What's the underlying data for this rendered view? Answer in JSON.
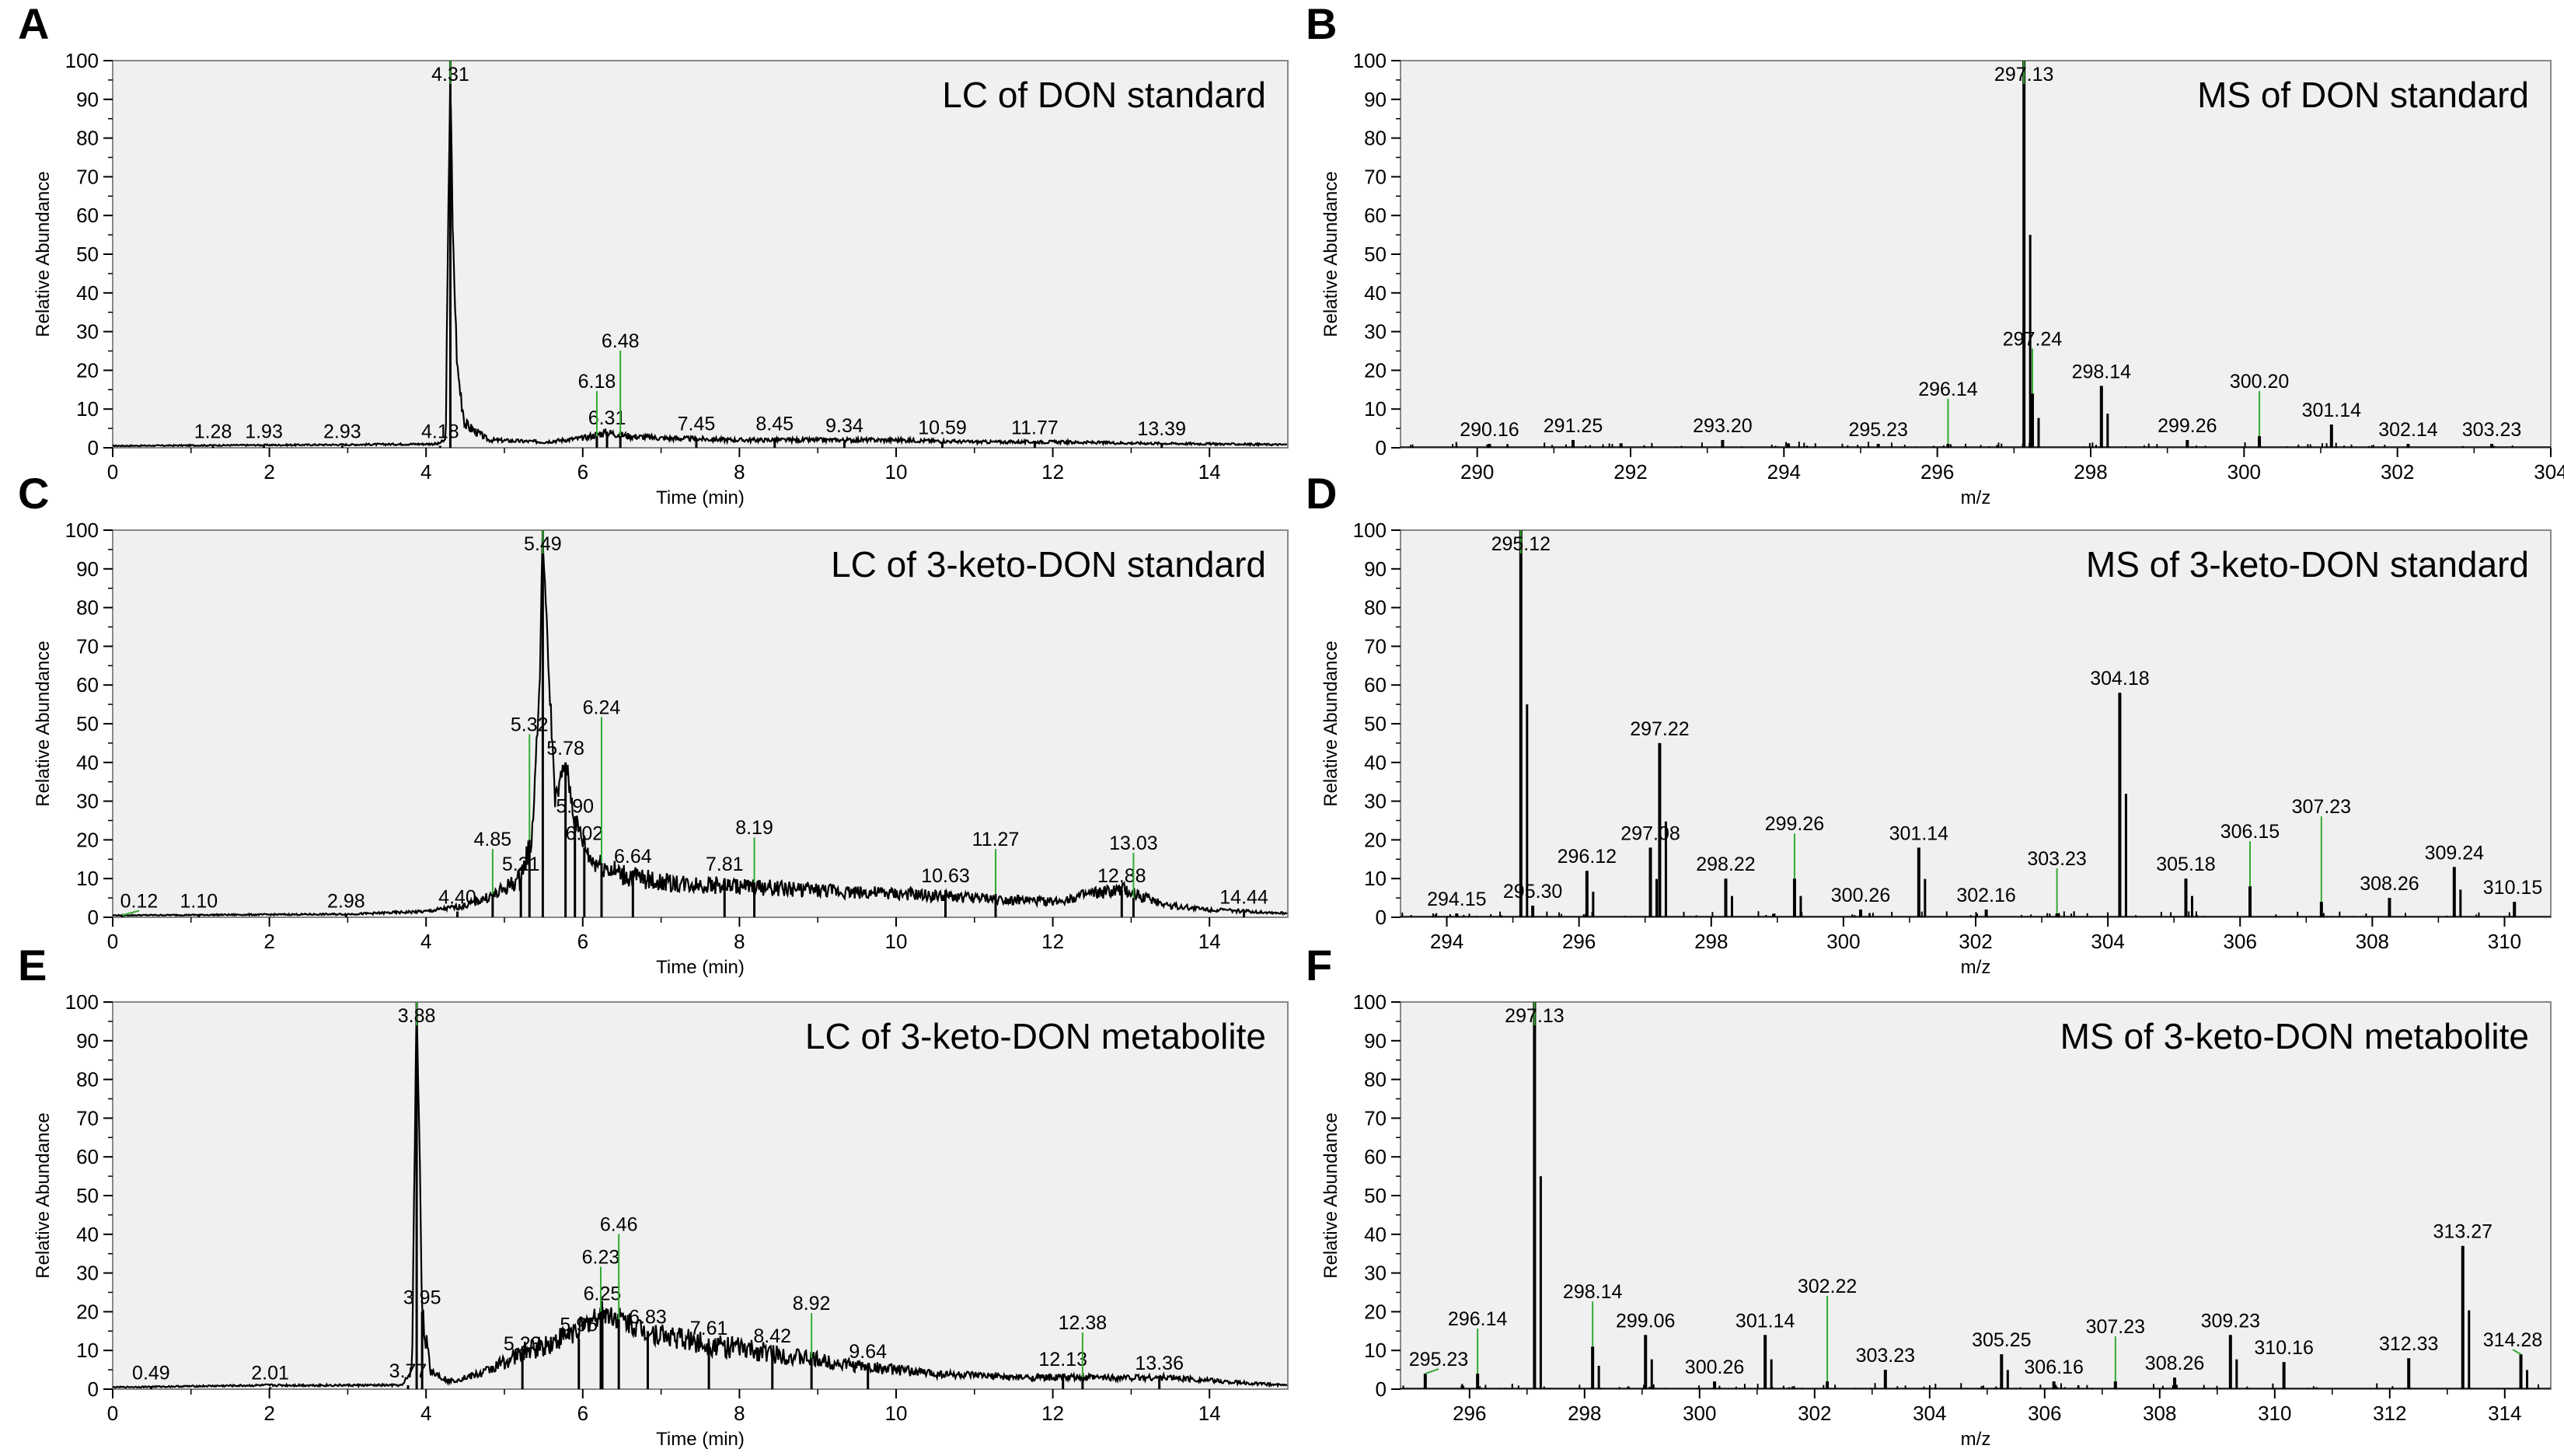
{
  "chart_data": [
    {
      "type": "line",
      "panel_letter": "A",
      "title": "LC of DON standard",
      "xlabel": "Time (min)",
      "ylabel": "Relative Abundance",
      "xlim": [
        0,
        15
      ],
      "ylim": [
        0,
        100
      ],
      "xticks": [
        "0",
        "2",
        "4",
        "6",
        "8",
        "10",
        "12",
        "14"
      ],
      "xtick_values": [
        0,
        2,
        4,
        6,
        8,
        10,
        12,
        14
      ],
      "yticks": [
        "0",
        "10",
        "20",
        "30",
        "40",
        "50",
        "60",
        "70",
        "80",
        "90",
        "100"
      ],
      "yticks_values": [
        0,
        10,
        20,
        30,
        40,
        50,
        60,
        70,
        80,
        90,
        100
      ],
      "baseline": [
        [
          0,
          0.5
        ],
        [
          3,
          0.8
        ],
        [
          4.15,
          1
        ],
        [
          4.25,
          2
        ],
        [
          4.3,
          85
        ],
        [
          4.31,
          100
        ],
        [
          4.34,
          55
        ],
        [
          4.4,
          20
        ],
        [
          4.5,
          6
        ],
        [
          4.8,
          2
        ],
        [
          5.5,
          1.5
        ],
        [
          6,
          2.5
        ],
        [
          6.3,
          4
        ],
        [
          6.6,
          3
        ],
        [
          7,
          2.5
        ],
        [
          8,
          2
        ],
        [
          9,
          2
        ],
        [
          10,
          2
        ],
        [
          11,
          1.5
        ],
        [
          12,
          1.5
        ],
        [
          13,
          1.2
        ],
        [
          14,
          1
        ],
        [
          15,
          0.8
        ]
      ],
      "peaks": [
        {
          "x": 1.28,
          "y": 0.5,
          "label": "1.28"
        },
        {
          "x": 1.93,
          "y": 0.5,
          "label": "1.93"
        },
        {
          "x": 2.93,
          "y": 0.5,
          "label": "2.93"
        },
        {
          "x": 4.18,
          "y": 0.5,
          "label": "4.18"
        },
        {
          "x": 4.31,
          "y": 100,
          "label": "4.31"
        },
        {
          "x": 6.18,
          "y": 3,
          "label": "6.18"
        },
        {
          "x": 6.31,
          "y": 4,
          "label": "6.31"
        },
        {
          "x": 6.48,
          "y": 3,
          "label": "6.48"
        },
        {
          "x": 7.45,
          "y": 2.5,
          "label": "7.45"
        },
        {
          "x": 8.45,
          "y": 2.5,
          "label": "8.45"
        },
        {
          "x": 9.34,
          "y": 2,
          "label": "9.34"
        },
        {
          "x": 10.59,
          "y": 1.5,
          "label": "10.59"
        },
        {
          "x": 11.77,
          "y": 1.5,
          "label": "11.77"
        },
        {
          "x": 13.39,
          "y": 1.2,
          "label": "13.39"
        }
      ]
    },
    {
      "type": "bar",
      "panel_letter": "B",
      "title": "MS of DON standard",
      "xlabel": "m/z",
      "ylabel": "Relative Abundance",
      "xlim": [
        289,
        304
      ],
      "ylim": [
        0,
        100
      ],
      "xticks": [
        "290",
        "292",
        "294",
        "296",
        "298",
        "300",
        "302",
        "304"
      ],
      "xtick_values": [
        290,
        292,
        294,
        296,
        298,
        300,
        302,
        304
      ],
      "yticks": [
        "0",
        "10",
        "20",
        "30",
        "40",
        "50",
        "60",
        "70",
        "80",
        "90",
        "100"
      ],
      "yticks_values": [
        0,
        10,
        20,
        30,
        40,
        50,
        60,
        70,
        80,
        90,
        100
      ],
      "peaks": [
        {
          "x": 290.16,
          "y": 1,
          "label": "290.16"
        },
        {
          "x": 291.25,
          "y": 2,
          "label": "291.25"
        },
        {
          "x": 293.2,
          "y": 2,
          "label": "293.20"
        },
        {
          "x": 295.23,
          "y": 1,
          "label": "295.23"
        },
        {
          "x": 296.14,
          "y": 1,
          "label": "296.14"
        },
        {
          "x": 297.13,
          "y": 100,
          "label": "297.13"
        },
        {
          "x": 297.24,
          "y": 14,
          "label": "297.24"
        },
        {
          "x": 298.14,
          "y": 16,
          "label": "298.14"
        },
        {
          "x": 299.26,
          "y": 2,
          "label": "299.26"
        },
        {
          "x": 300.2,
          "y": 3,
          "label": "300.20"
        },
        {
          "x": 301.14,
          "y": 6,
          "label": "301.14"
        },
        {
          "x": 302.14,
          "y": 1,
          "label": "302.14"
        },
        {
          "x": 303.23,
          "y": 1,
          "label": "303.23"
        }
      ]
    },
    {
      "type": "line",
      "panel_letter": "C",
      "title": "LC of 3-keto-DON standard",
      "xlabel": "Time (min)",
      "ylabel": "Relative Abundance",
      "xlim": [
        0,
        15
      ],
      "ylim": [
        0,
        100
      ],
      "xticks": [
        "0",
        "2",
        "4",
        "6",
        "8",
        "10",
        "12",
        "14"
      ],
      "xtick_values": [
        0,
        2,
        4,
        6,
        8,
        10,
        12,
        14
      ],
      "yticks": [
        "0",
        "10",
        "20",
        "30",
        "40",
        "50",
        "60",
        "70",
        "80",
        "90",
        "100"
      ],
      "yticks_values": [
        0,
        10,
        20,
        30,
        40,
        50,
        60,
        70,
        80,
        90,
        100
      ],
      "baseline": [
        [
          0,
          0.5
        ],
        [
          3,
          0.8
        ],
        [
          4,
          1.5
        ],
        [
          4.5,
          3
        ],
        [
          4.9,
          6
        ],
        [
          5.2,
          10
        ],
        [
          5.35,
          20
        ],
        [
          5.45,
          60
        ],
        [
          5.49,
          100
        ],
        [
          5.55,
          70
        ],
        [
          5.65,
          30
        ],
        [
          5.78,
          40
        ],
        [
          5.9,
          25
        ],
        [
          6.1,
          15
        ],
        [
          6.5,
          11
        ],
        [
          7,
          9
        ],
        [
          8,
          8
        ],
        [
          9,
          7
        ],
        [
          10,
          6
        ],
        [
          11,
          5
        ],
        [
          12,
          4
        ],
        [
          12.5,
          6
        ],
        [
          12.9,
          7
        ],
        [
          13.5,
          3
        ],
        [
          14,
          2
        ],
        [
          14.5,
          1.5
        ],
        [
          15,
          1
        ]
      ],
      "peaks": [
        {
          "x": 0.12,
          "y": 0.5,
          "label": "0.12"
        },
        {
          "x": 1.1,
          "y": 0.5,
          "label": "1.10"
        },
        {
          "x": 2.98,
          "y": 0.5,
          "label": "2.98"
        },
        {
          "x": 4.4,
          "y": 1.5,
          "label": "4.40"
        },
        {
          "x": 4.85,
          "y": 6,
          "label": "4.85"
        },
        {
          "x": 5.21,
          "y": 10,
          "label": "5.21"
        },
        {
          "x": 5.32,
          "y": 20,
          "label": "5.32"
        },
        {
          "x": 5.49,
          "y": 100,
          "label": "5.49"
        },
        {
          "x": 5.78,
          "y": 40,
          "label": "5.78"
        },
        {
          "x": 5.9,
          "y": 25,
          "label": "5.90"
        },
        {
          "x": 6.02,
          "y": 18,
          "label": "6.02"
        },
        {
          "x": 6.24,
          "y": 14,
          "label": "6.24"
        },
        {
          "x": 6.64,
          "y": 12,
          "label": "6.64"
        },
        {
          "x": 7.81,
          "y": 10,
          "label": "7.81"
        },
        {
          "x": 8.19,
          "y": 9,
          "label": "8.19"
        },
        {
          "x": 10.63,
          "y": 7,
          "label": "10.63"
        },
        {
          "x": 11.27,
          "y": 6,
          "label": "11.27"
        },
        {
          "x": 12.88,
          "y": 7,
          "label": "12.88"
        },
        {
          "x": 13.03,
          "y": 5,
          "label": "13.03"
        },
        {
          "x": 14.44,
          "y": 1.5,
          "label": "14.44"
        }
      ]
    },
    {
      "type": "bar",
      "panel_letter": "D",
      "title": "MS of 3-keto-DON standard",
      "xlabel": "m/z",
      "ylabel": "Relative Abundance",
      "xlim": [
        293.3,
        310.7
      ],
      "ylim": [
        0,
        100
      ],
      "xticks": [
        "294",
        "296",
        "298",
        "300",
        "302",
        "304",
        "306",
        "308",
        "310"
      ],
      "xtick_values": [
        294,
        296,
        298,
        300,
        302,
        304,
        306,
        308,
        310
      ],
      "yticks": [
        "0",
        "10",
        "20",
        "30",
        "40",
        "50",
        "60",
        "70",
        "80",
        "90",
        "100"
      ],
      "yticks_values": [
        0,
        10,
        20,
        30,
        40,
        50,
        60,
        70,
        80,
        90,
        100
      ],
      "peaks": [
        {
          "x": 294.15,
          "y": 1,
          "label": "294.15"
        },
        {
          "x": 295.12,
          "y": 100,
          "label": "295.12"
        },
        {
          "x": 295.3,
          "y": 3,
          "label": "295.30"
        },
        {
          "x": 296.12,
          "y": 12,
          "label": "296.12"
        },
        {
          "x": 297.08,
          "y": 18,
          "label": "297.08"
        },
        {
          "x": 297.22,
          "y": 45,
          "label": "297.22"
        },
        {
          "x": 298.22,
          "y": 10,
          "label": "298.22"
        },
        {
          "x": 299.26,
          "y": 10,
          "label": "299.26"
        },
        {
          "x": 300.26,
          "y": 2,
          "label": "300.26"
        },
        {
          "x": 301.14,
          "y": 18,
          "label": "301.14"
        },
        {
          "x": 302.16,
          "y": 2,
          "label": "302.16"
        },
        {
          "x": 303.23,
          "y": 1,
          "label": "303.23"
        },
        {
          "x": 304.18,
          "y": 58,
          "label": "304.18"
        },
        {
          "x": 305.18,
          "y": 10,
          "label": "305.18"
        },
        {
          "x": 306.15,
          "y": 8,
          "label": "306.15"
        },
        {
          "x": 307.23,
          "y": 4,
          "label": "307.23"
        },
        {
          "x": 308.26,
          "y": 5,
          "label": "308.26"
        },
        {
          "x": 309.24,
          "y": 13,
          "label": "309.24"
        },
        {
          "x": 310.15,
          "y": 4,
          "label": "310.15"
        }
      ]
    },
    {
      "type": "line",
      "panel_letter": "E",
      "title": "LC of 3-keto-DON metabolite",
      "xlabel": "Time (min)",
      "ylabel": "Relative Abundance",
      "xlim": [
        0,
        15
      ],
      "ylim": [
        0,
        100
      ],
      "xticks": [
        "0",
        "2",
        "4",
        "6",
        "8",
        "10",
        "12",
        "14"
      ],
      "xtick_values": [
        0,
        2,
        4,
        6,
        8,
        10,
        12,
        14
      ],
      "yticks": [
        "0",
        "10",
        "20",
        "30",
        "40",
        "50",
        "60",
        "70",
        "80",
        "90",
        "100"
      ],
      "yticks_values": [
        0,
        10,
        20,
        30,
        40,
        50,
        60,
        70,
        80,
        90,
        100
      ],
      "baseline": [
        [
          0,
          0.5
        ],
        [
          2,
          1
        ],
        [
          3.7,
          1
        ],
        [
          3.82,
          5
        ],
        [
          3.86,
          70
        ],
        [
          3.88,
          100
        ],
        [
          3.92,
          60
        ],
        [
          3.95,
          20
        ],
        [
          4.05,
          5
        ],
        [
          4.3,
          2
        ],
        [
          4.7,
          4
        ],
        [
          5,
          7
        ],
        [
          5.3,
          10
        ],
        [
          5.6,
          12
        ],
        [
          6,
          16
        ],
        [
          6.25,
          20
        ],
        [
          6.5,
          18
        ],
        [
          6.8,
          15
        ],
        [
          7.5,
          12
        ],
        [
          8.5,
          9
        ],
        [
          9.5,
          6
        ],
        [
          10.5,
          4
        ],
        [
          11.5,
          3
        ],
        [
          12.5,
          3
        ],
        [
          13.5,
          3
        ],
        [
          14.5,
          1.5
        ],
        [
          15,
          1
        ]
      ],
      "peaks": [
        {
          "x": 0.49,
          "y": 0.5,
          "label": "0.49"
        },
        {
          "x": 2.01,
          "y": 0.5,
          "label": "2.01"
        },
        {
          "x": 3.77,
          "y": 1,
          "label": "3.77"
        },
        {
          "x": 3.88,
          "y": 100,
          "label": "3.88"
        },
        {
          "x": 3.95,
          "y": 20,
          "label": "3.95"
        },
        {
          "x": 5.23,
          "y": 8,
          "label": "5.23"
        },
        {
          "x": 5.95,
          "y": 13,
          "label": "5.95"
        },
        {
          "x": 6.23,
          "y": 20,
          "label": "6.23"
        },
        {
          "x": 6.25,
          "y": 21,
          "label": "6.25"
        },
        {
          "x": 6.46,
          "y": 18,
          "label": "6.46"
        },
        {
          "x": 6.83,
          "y": 15,
          "label": "6.83"
        },
        {
          "x": 7.61,
          "y": 12,
          "label": "7.61"
        },
        {
          "x": 8.42,
          "y": 10,
          "label": "8.42"
        },
        {
          "x": 8.92,
          "y": 8,
          "label": "8.92"
        },
        {
          "x": 9.64,
          "y": 6,
          "label": "9.64"
        },
        {
          "x": 12.13,
          "y": 4,
          "label": "12.13"
        },
        {
          "x": 12.38,
          "y": 3,
          "label": "12.38"
        },
        {
          "x": 13.36,
          "y": 3,
          "label": "13.36"
        }
      ]
    },
    {
      "type": "bar",
      "panel_letter": "F",
      "title": "MS of 3-keto-DON metabolite",
      "xlabel": "m/z",
      "ylabel": "Relative Abundance",
      "xlim": [
        294.8,
        314.8
      ],
      "ylim": [
        0,
        100
      ],
      "xticks": [
        "296",
        "298",
        "300",
        "302",
        "304",
        "306",
        "308",
        "310",
        "312",
        "314"
      ],
      "xtick_values": [
        296,
        298,
        300,
        302,
        304,
        306,
        308,
        310,
        312,
        314
      ],
      "yticks": [
        "0",
        "10",
        "20",
        "30",
        "40",
        "50",
        "60",
        "70",
        "80",
        "90",
        "100"
      ],
      "yticks_values": [
        0,
        10,
        20,
        30,
        40,
        50,
        60,
        70,
        80,
        90,
        100
      ],
      "peaks": [
        {
          "x": 295.23,
          "y": 4,
          "label": "295.23"
        },
        {
          "x": 296.14,
          "y": 4,
          "label": "296.14"
        },
        {
          "x": 297.13,
          "y": 100,
          "label": "297.13"
        },
        {
          "x": 298.14,
          "y": 11,
          "label": "298.14"
        },
        {
          "x": 299.06,
          "y": 14,
          "label": "299.06"
        },
        {
          "x": 300.26,
          "y": 2,
          "label": "300.26"
        },
        {
          "x": 301.14,
          "y": 14,
          "label": "301.14"
        },
        {
          "x": 302.22,
          "y": 2,
          "label": "302.22"
        },
        {
          "x": 303.23,
          "y": 5,
          "label": "303.23"
        },
        {
          "x": 305.25,
          "y": 9,
          "label": "305.25"
        },
        {
          "x": 306.16,
          "y": 2,
          "label": "306.16"
        },
        {
          "x": 307.23,
          "y": 2,
          "label": "307.23"
        },
        {
          "x": 308.26,
          "y": 3,
          "label": "308.26"
        },
        {
          "x": 309.23,
          "y": 14,
          "label": "309.23"
        },
        {
          "x": 310.16,
          "y": 7,
          "label": "310.16"
        },
        {
          "x": 312.33,
          "y": 8,
          "label": "312.33"
        },
        {
          "x": 313.27,
          "y": 37,
          "label": "313.27"
        },
        {
          "x": 314.28,
          "y": 9,
          "label": "314.28"
        }
      ]
    }
  ],
  "colors": {
    "plot_background": "#f0f0f0",
    "trace": "#000000",
    "leader_line": "#33aa33",
    "frame": "#888888"
  }
}
